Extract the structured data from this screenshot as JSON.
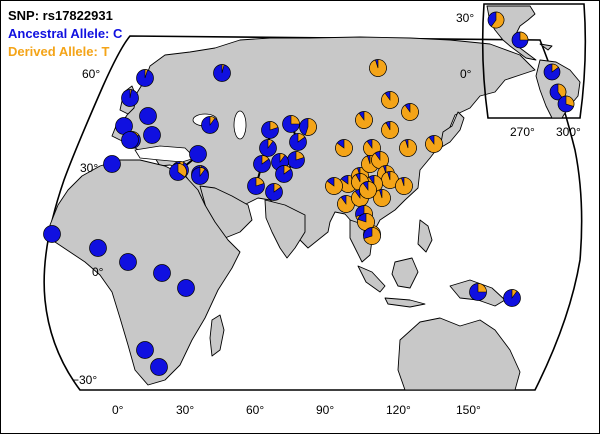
{
  "legend": {
    "title": "SNP: rs17822931",
    "ancestral": "Ancestral Allele: C",
    "derived": "Derived Allele: T"
  },
  "colors": {
    "ancestral": "#1010e0",
    "derived": "#f4a418",
    "land": "#c8c8c8",
    "ocean": "#ffffff",
    "outline": "#000000"
  },
  "main_axis": {
    "lat_ticks": [
      "60°",
      "30°",
      "0°",
      "−30°"
    ],
    "lon_ticks": [
      "0°",
      "30°",
      "60°",
      "90°",
      "120°",
      "150°"
    ]
  },
  "inset_axis": {
    "lat_ticks": [
      "30°",
      "0°"
    ],
    "lon_ticks": [
      "270°",
      "300°"
    ]
  },
  "populations": [
    {
      "region": "britain",
      "derived_fraction": 0.05
    },
    {
      "region": "scandinavia",
      "derived_fraction": 0.04
    },
    {
      "region": "finland",
      "derived_fraction": 0.03
    },
    {
      "region": "russia-north",
      "derived_fraction": 0.1
    },
    {
      "region": "france",
      "derived_fraction": 0.0
    },
    {
      "region": "germany",
      "derived_fraction": 0.0
    },
    {
      "region": "italy-north",
      "derived_fraction": 0.0
    },
    {
      "region": "russia-central",
      "derived_fraction": 0.15
    },
    {
      "region": "spain",
      "derived_fraction": 0.0
    },
    {
      "region": "italy-south",
      "derived_fraction": 0.0
    },
    {
      "region": "greece",
      "derived_fraction": 0.03
    },
    {
      "region": "north-africa",
      "derived_fraction": 0.0
    },
    {
      "region": "levant",
      "derived_fraction": 0.08
    },
    {
      "region": "egypt",
      "derived_fraction": 0.35
    },
    {
      "region": "middle-east",
      "derived_fraction": 0.1
    },
    {
      "region": "central-asia-1",
      "derived_fraction": 0.2
    },
    {
      "region": "central-asia-2",
      "derived_fraction": 0.25
    },
    {
      "region": "central-asia-3",
      "derived_fraction": 0.55
    },
    {
      "region": "central-asia-4",
      "derived_fraction": 0.1
    },
    {
      "region": "central-asia-5",
      "derived_fraction": 0.15
    },
    {
      "region": "central-asia-6",
      "derived_fraction": 0.2
    },
    {
      "region": "pakistan-1",
      "derived_fraction": 0.15
    },
    {
      "region": "pakistan-2",
      "derived_fraction": 0.1
    },
    {
      "region": "pakistan-3",
      "derived_fraction": 0.15
    },
    {
      "region": "india-1",
      "derived_fraction": 0.2
    },
    {
      "region": "india-2",
      "derived_fraction": 0.15
    },
    {
      "region": "siberia-1",
      "derived_fraction": 0.95
    },
    {
      "region": "siberia-2",
      "derived_fraction": 0.9
    },
    {
      "region": "siberia-3",
      "derived_fraction": 0.9
    },
    {
      "region": "mongolia",
      "derived_fraction": 0.9
    },
    {
      "region": "manchuria",
      "derived_fraction": 0.92
    },
    {
      "region": "china-north-1",
      "derived_fraction": 0.85
    },
    {
      "region": "china-north-2",
      "derived_fraction": 0.9
    },
    {
      "region": "korea",
      "derived_fraction": 0.95
    },
    {
      "region": "japan",
      "derived_fraction": 0.9
    },
    {
      "region": "china-west",
      "derived_fraction": 0.85
    },
    {
      "region": "china-1",
      "derived_fraction": 0.95
    },
    {
      "region": "china-2",
      "derived_fraction": 0.95
    },
    {
      "region": "china-3",
      "derived_fraction": 0.9
    },
    {
      "region": "china-4",
      "derived_fraction": 0.95
    },
    {
      "region": "china-5",
      "derived_fraction": 0.95
    },
    {
      "region": "china-6",
      "derived_fraction": 0.9
    },
    {
      "region": "china-7",
      "derived_fraction": 0.92
    },
    {
      "region": "china-8",
      "derived_fraction": 0.95
    },
    {
      "region": "china-9",
      "derived_fraction": 0.95
    },
    {
      "region": "tibet",
      "derived_fraction": 0.85
    },
    {
      "region": "china-south-1",
      "derived_fraction": 0.9
    },
    {
      "region": "china-south-2",
      "derived_fraction": 0.9
    },
    {
      "region": "china-south-3",
      "derived_fraction": 0.9
    },
    {
      "region": "se-asia-1",
      "derived_fraction": 0.7
    },
    {
      "region": "se-asia-2",
      "derived_fraction": 0.75
    },
    {
      "region": "se-asia-3",
      "derived_fraction": 0.8
    },
    {
      "region": "cambodia",
      "derived_fraction": 0.7
    },
    {
      "region": "west-africa-1",
      "derived_fraction": 0.0
    },
    {
      "region": "west-africa-2",
      "derived_fraction": 0.0
    },
    {
      "region": "central-africa-1",
      "derived_fraction": 0.0
    },
    {
      "region": "central-africa-2",
      "derived_fraction": 0.0
    },
    {
      "region": "east-africa",
      "derived_fraction": 0.0
    },
    {
      "region": "south-africa-1",
      "derived_fraction": 0.0
    },
    {
      "region": "south-africa-2",
      "derived_fraction": 0.0
    },
    {
      "region": "new-guinea",
      "derived_fraction": 0.25
    },
    {
      "region": "bougainville",
      "derived_fraction": 0.1
    }
  ],
  "inset_populations": [
    {
      "region": "north-america",
      "derived_fraction": 0.6
    },
    {
      "region": "mexico",
      "derived_fraction": 0.25
    },
    {
      "region": "amazon-1",
      "derived_fraction": 0.15
    },
    {
      "region": "amazon-2",
      "derived_fraction": 0.4
    },
    {
      "region": "south-america",
      "derived_fraction": 0.3
    }
  ]
}
